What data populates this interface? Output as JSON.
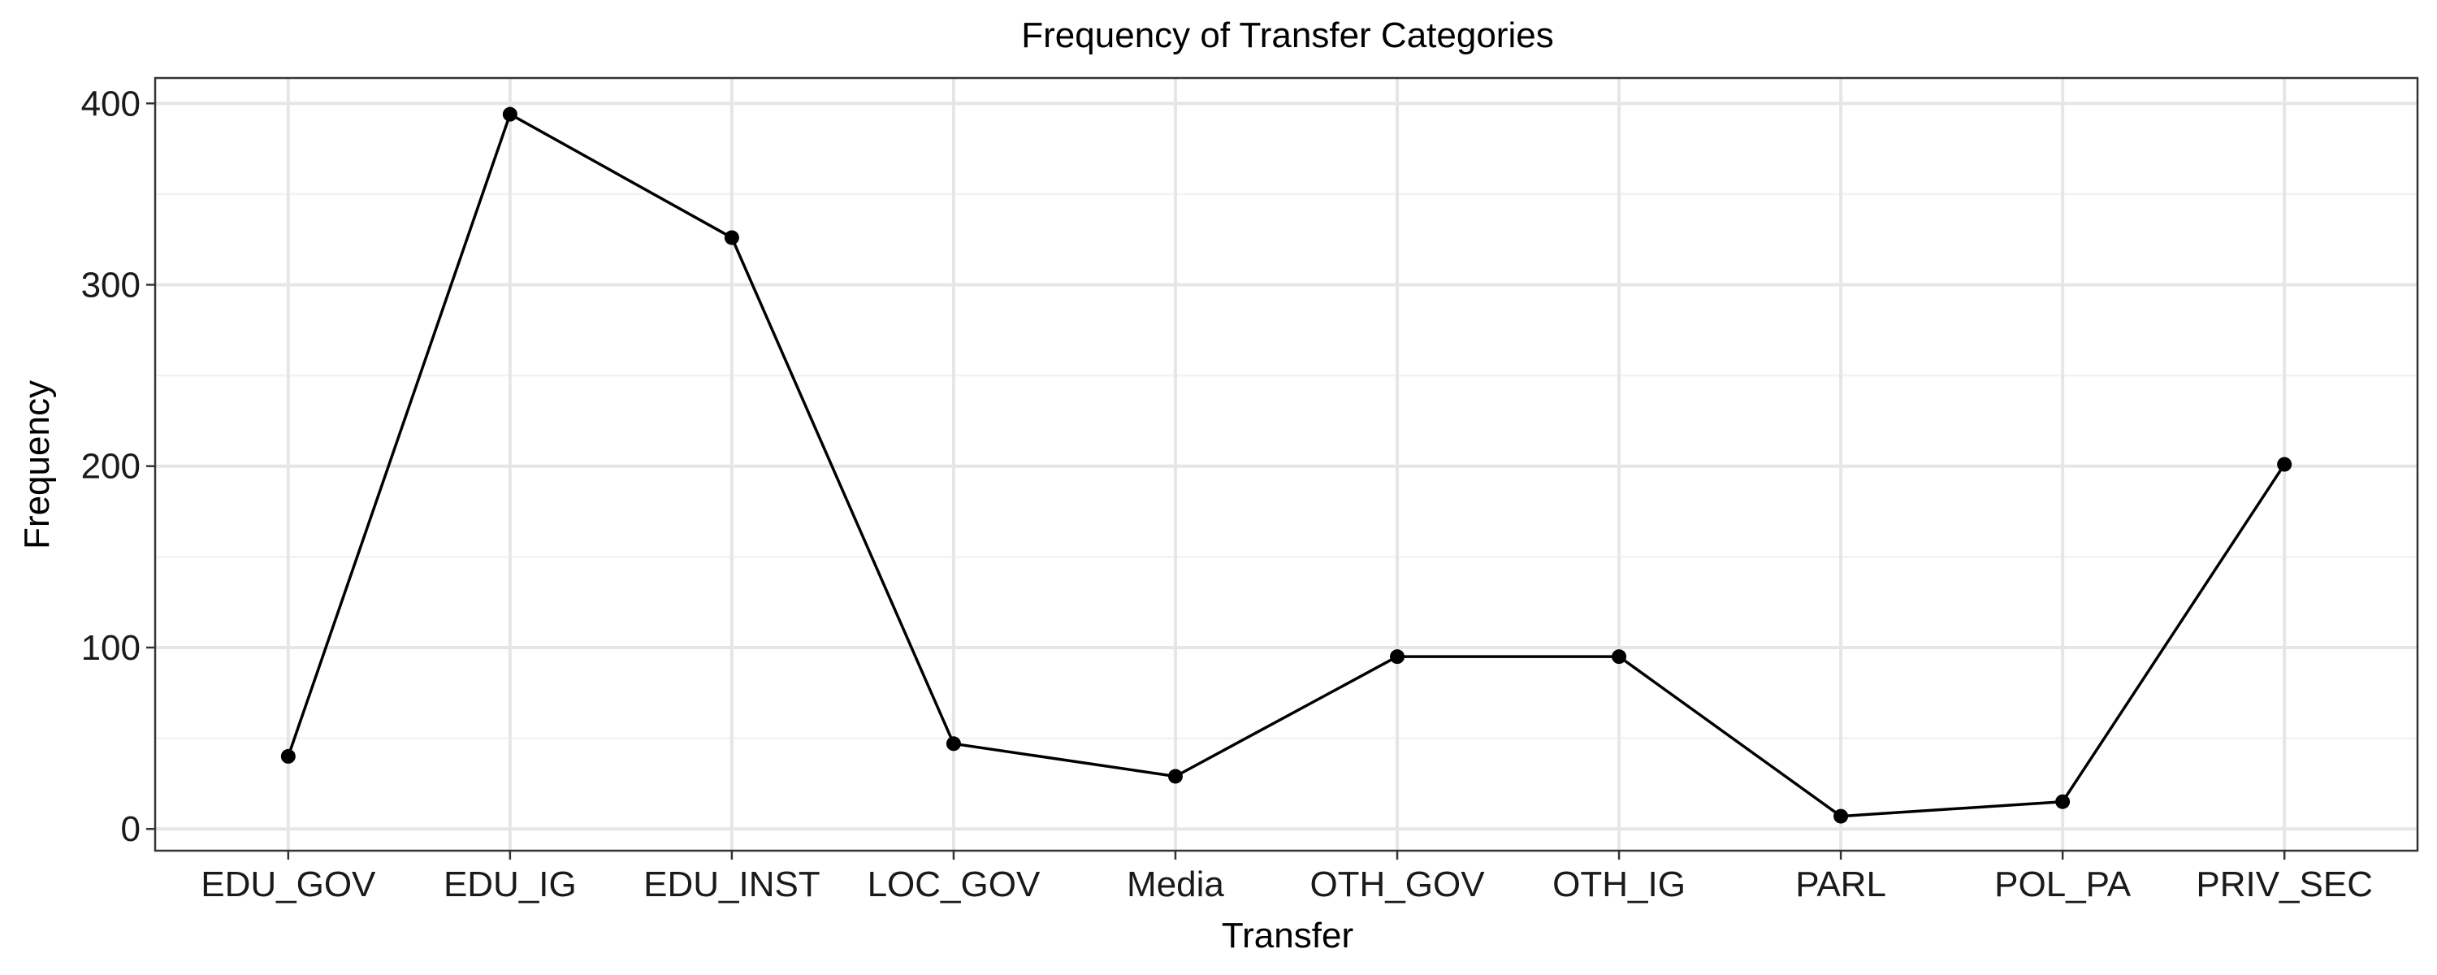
{
  "chart_data": {
    "type": "line",
    "title": "Frequency of Transfer Categories",
    "xlabel": "Transfer",
    "ylabel": "Frequency",
    "categories": [
      "EDU_GOV",
      "EDU_IG",
      "EDU_INST",
      "LOC_GOV",
      "Media",
      "OTH_GOV",
      "OTH_IG",
      "PARL",
      "POL_PA",
      "PRIV_SEC"
    ],
    "values": [
      40,
      394,
      326,
      47,
      29,
      95,
      95,
      7,
      15,
      201
    ],
    "ylim": [
      -12,
      414
    ],
    "yticks": [
      0,
      100,
      200,
      300,
      400
    ],
    "grid": true,
    "legend": "none",
    "colors": {
      "line": "#000000",
      "point": "#000000",
      "grid": "#e6e6e6"
    }
  }
}
